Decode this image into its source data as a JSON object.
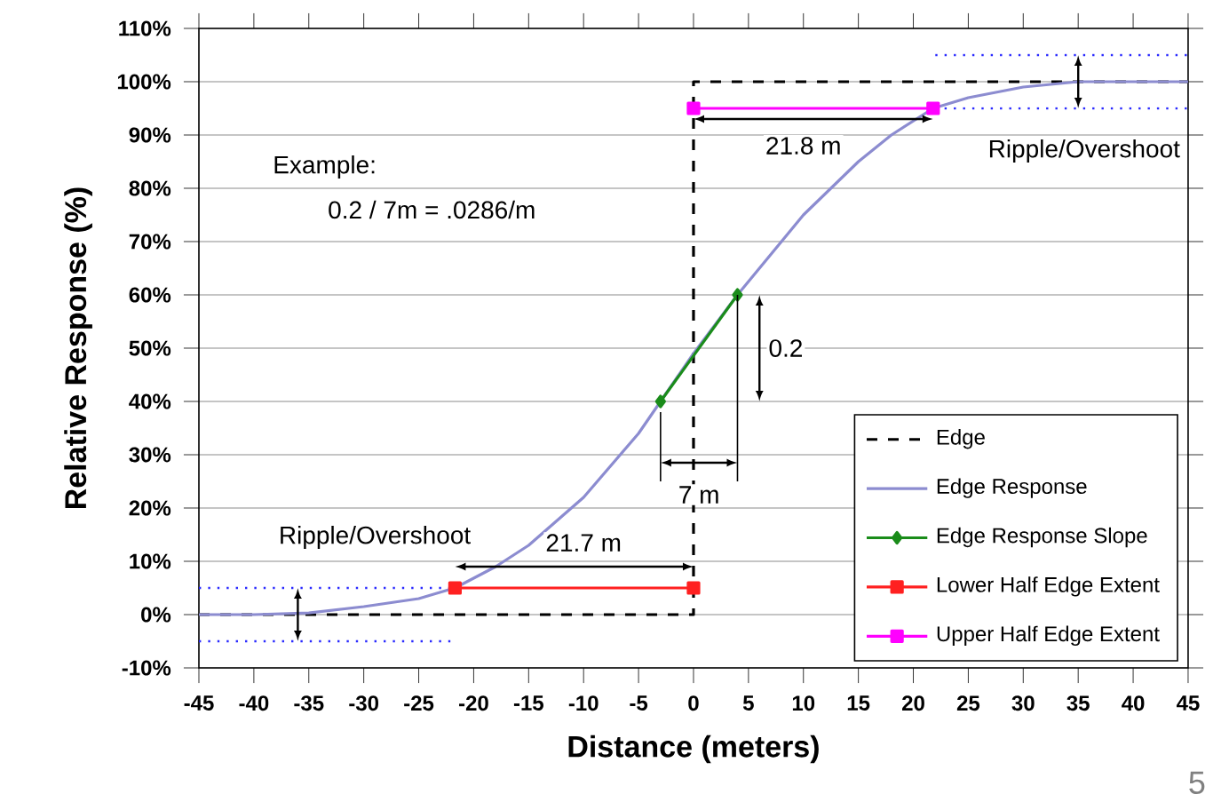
{
  "chart_data": {
    "type": "line",
    "xlabel": "Distance (meters)",
    "ylabel": "Relative Response (%)",
    "xlim": [
      -45,
      45
    ],
    "ylim": [
      -10,
      110
    ],
    "xticks": [
      -45,
      -40,
      -35,
      -30,
      -25,
      -20,
      -15,
      -10,
      -5,
      0,
      5,
      10,
      15,
      20,
      25,
      30,
      35,
      40,
      45
    ],
    "yticks": [
      {
        "value": -10,
        "label": "-10%"
      },
      {
        "value": 0,
        "label": "0%"
      },
      {
        "value": 10,
        "label": "10%"
      },
      {
        "value": 20,
        "label": "20%"
      },
      {
        "value": 30,
        "label": "30%"
      },
      {
        "value": 40,
        "label": "40%"
      },
      {
        "value": 50,
        "label": "50%"
      },
      {
        "value": 60,
        "label": "60%"
      },
      {
        "value": 70,
        "label": "70%"
      },
      {
        "value": 80,
        "label": "80%"
      },
      {
        "value": 90,
        "label": "90%"
      },
      {
        "value": 100,
        "label": "100%"
      },
      {
        "value": 110,
        "label": "110%"
      }
    ],
    "grid": "y",
    "legend": "bottom right",
    "series": [
      {
        "name": "Edge",
        "color": "#000000",
        "line_style": "dashed",
        "marker": "none",
        "x": [
          -45,
          0,
          0,
          45
        ],
        "values": [
          0,
          0,
          100,
          100
        ]
      },
      {
        "name": "Edge Response",
        "color": "#8c8cd0",
        "line_style": "solid",
        "marker": "none",
        "x": [
          -45,
          -40,
          -35,
          -30,
          -25,
          -21.7,
          -18,
          -15,
          -10,
          -5,
          -3,
          0,
          4,
          10,
          15,
          18,
          21.8,
          25,
          30,
          35,
          40,
          45
        ],
        "values": [
          0,
          0,
          0.3,
          1.5,
          3,
          5,
          9,
          13,
          22,
          34,
          40,
          49,
          60,
          75,
          85,
          90,
          95,
          97,
          99,
          100,
          100,
          100
        ]
      },
      {
        "name": "Edge Response Slope",
        "color": "#1a8c1a",
        "line_style": "solid",
        "marker": "diamond",
        "x": [
          -3,
          4
        ],
        "values": [
          40,
          60
        ]
      },
      {
        "name": "Lower Half Edge Extent",
        "color": "#ff2020",
        "line_style": "solid",
        "marker": "square",
        "x": [
          -21.7,
          0
        ],
        "values": [
          5,
          5
        ]
      },
      {
        "name": "Upper Half Edge Extent",
        "color": "#ff00ff",
        "line_style": "solid",
        "marker": "square",
        "x": [
          0,
          21.8
        ],
        "values": [
          95,
          95
        ]
      },
      {
        "color": "#2a2aff",
        "line_style": "dotted",
        "marker": "none",
        "x": [
          -45,
          -22
        ],
        "values": [
          5,
          5
        ]
      },
      {
        "color": "#2a2aff",
        "line_style": "dotted",
        "marker": "none",
        "x": [
          -45,
          -22
        ],
        "values": [
          -5,
          -5
        ]
      },
      {
        "color": "#2a2aff",
        "line_style": "dotted",
        "marker": "none",
        "x": [
          22,
          45
        ],
        "values": [
          105,
          105
        ]
      },
      {
        "color": "#2a2aff",
        "line_style": "dotted",
        "marker": "none",
        "x": [
          22,
          45
        ],
        "values": [
          95,
          95
        ]
      }
    ],
    "annotations": [
      "Example:",
      "0.2 / 7m = .0286/m",
      "21.8 m",
      "21.7 m",
      {
        "text": "7 m",
        "x": 4,
        "y": 60
      },
      "0.2",
      "Ripple/Overshoot",
      "Ripple/Overshoot",
      "5"
    ]
  }
}
